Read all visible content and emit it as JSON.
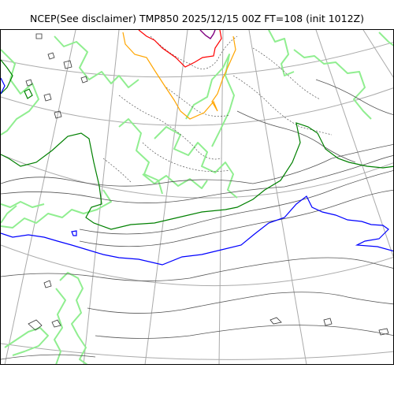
{
  "title": "NCEP(See disclaimer) TMP850 2025/12/15 00Z FT=108 (init 1012Z)",
  "map": {
    "field": "TMP850",
    "colors": {
      "graticule": "#aaaaaa",
      "coastline": "#90ee90",
      "isotherm_thin": "#555555",
      "isotherm_dotted": "#555555",
      "isotherm_green": "#008000",
      "isotherm_blue": "#0000ff",
      "isotherm_orange": "#ffa500",
      "isotherm_red": "#ff0000",
      "isotherm_purple": "#800080"
    }
  }
}
